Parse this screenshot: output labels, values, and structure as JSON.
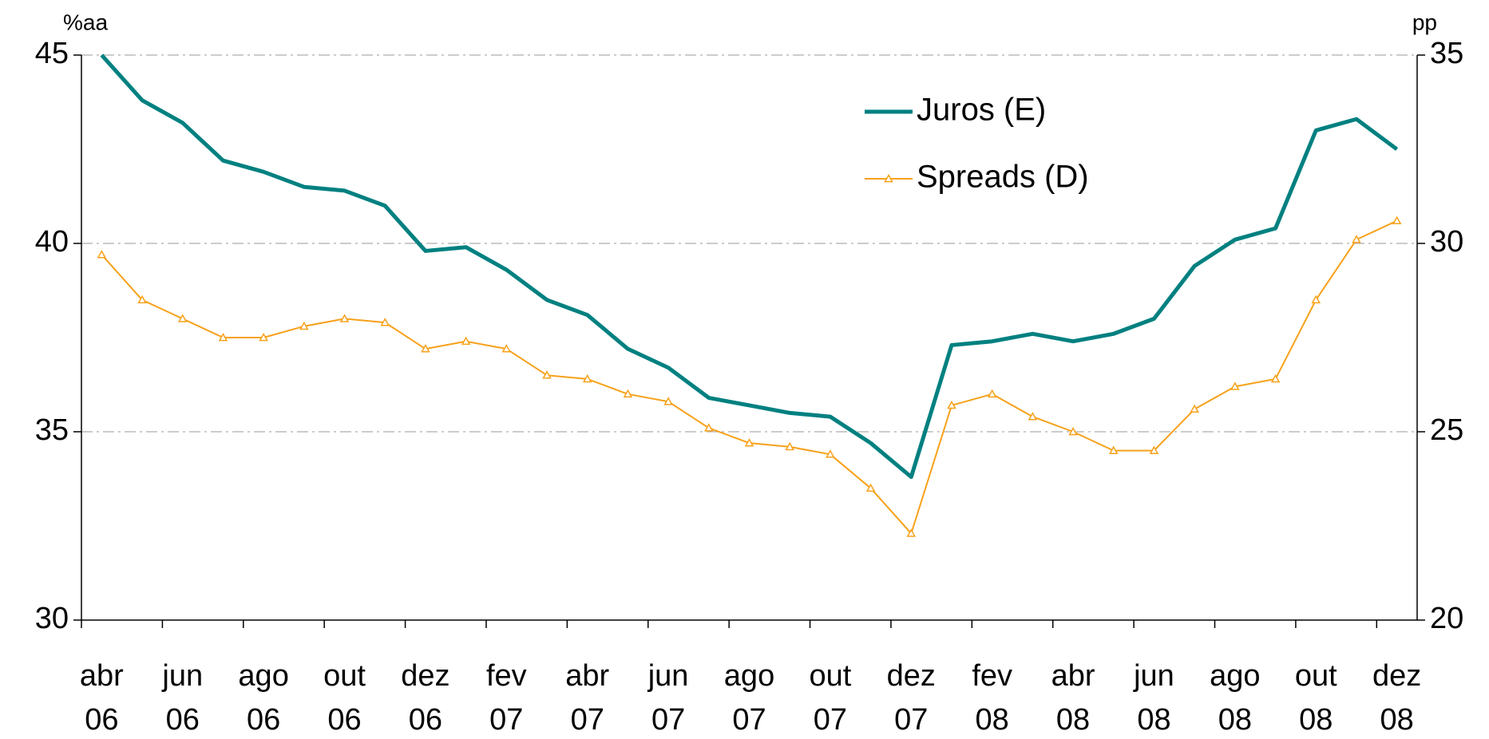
{
  "chart_data": {
    "type": "line",
    "y_unit_label": "%aa",
    "y2_unit_label": "pp",
    "categories": [
      "abr 06",
      null,
      "jun 06",
      null,
      "ago 06",
      null,
      "out 06",
      null,
      "dez 06",
      null,
      "fev 07",
      null,
      "abr 07",
      null,
      "jun 07",
      null,
      "ago 07",
      null,
      "out 07",
      null,
      "dez 07",
      null,
      "fev 08",
      null,
      "abr 08",
      null,
      "jun 08",
      null,
      "ago 08",
      null,
      "out 08",
      null,
      "dez 08"
    ],
    "series": [
      {
        "name": "Juros (E)",
        "color": "#008080",
        "axis": "y",
        "marker": "none",
        "values": [
          45.0,
          43.8,
          43.2,
          42.2,
          41.9,
          41.5,
          41.4,
          41.0,
          39.8,
          39.9,
          39.3,
          38.5,
          38.1,
          37.2,
          36.7,
          35.9,
          35.7,
          35.5,
          35.4,
          34.7,
          33.8,
          37.3,
          37.4,
          37.6,
          37.4,
          37.6,
          38.0,
          39.4,
          40.1,
          40.4,
          43.0,
          43.3,
          42.5
        ]
      },
      {
        "name": "Spreads (D)",
        "color": "#F7A11A",
        "axis": "y2",
        "marker": "triangle",
        "values": [
          29.7,
          28.5,
          28.0,
          27.5,
          27.5,
          27.8,
          28.0,
          27.9,
          27.2,
          27.4,
          27.2,
          26.5,
          26.4,
          26.0,
          25.8,
          25.1,
          24.7,
          24.6,
          24.4,
          23.5,
          22.3,
          25.7,
          26.0,
          25.4,
          25.0,
          24.5,
          24.5,
          25.6,
          26.2,
          26.4,
          28.5,
          30.1,
          30.6
        ]
      }
    ],
    "ylim": [
      30,
      45
    ],
    "yticks": [
      30,
      35,
      40,
      45
    ],
    "y2lim": [
      20,
      35
    ],
    "y2ticks": [
      20,
      25,
      30,
      35
    ],
    "grid": true,
    "legend": "top-right"
  }
}
